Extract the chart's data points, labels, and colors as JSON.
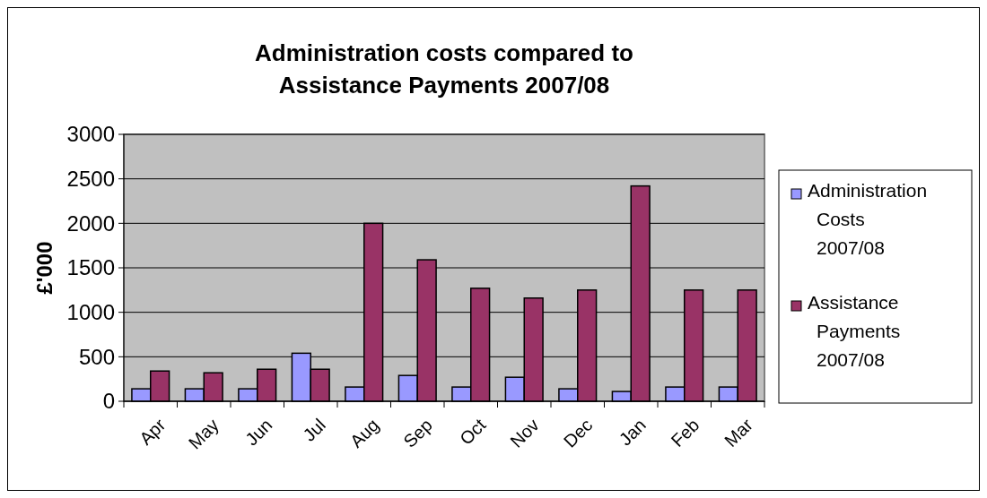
{
  "chart_data": {
    "type": "bar",
    "title": "Administration costs compared to Assistance Payments 2007/08",
    "ylabel": "£'000",
    "categories": [
      "Apr",
      "May",
      "Jun",
      "Jul",
      "Aug",
      "Sep",
      "Oct",
      "Nov",
      "Dec",
      "Jan",
      "Feb",
      "Mar"
    ],
    "series": [
      {
        "name": "Administration Costs 2007/08",
        "color": "#9999ff",
        "values": [
          140,
          140,
          140,
          540,
          160,
          290,
          160,
          270,
          140,
          110,
          160,
          160
        ]
      },
      {
        "name": "Assistance Payments 2007/08",
        "color": "#993366",
        "values": [
          340,
          320,
          360,
          360,
          2000,
          1590,
          1270,
          1160,
          1250,
          2420,
          1250,
          1250
        ]
      }
    ],
    "ylim": [
      0,
      3000
    ],
    "yticks": [
      0,
      500,
      1000,
      1500,
      2000,
      2500,
      3000
    ],
    "grid": "y",
    "legend": "right"
  }
}
